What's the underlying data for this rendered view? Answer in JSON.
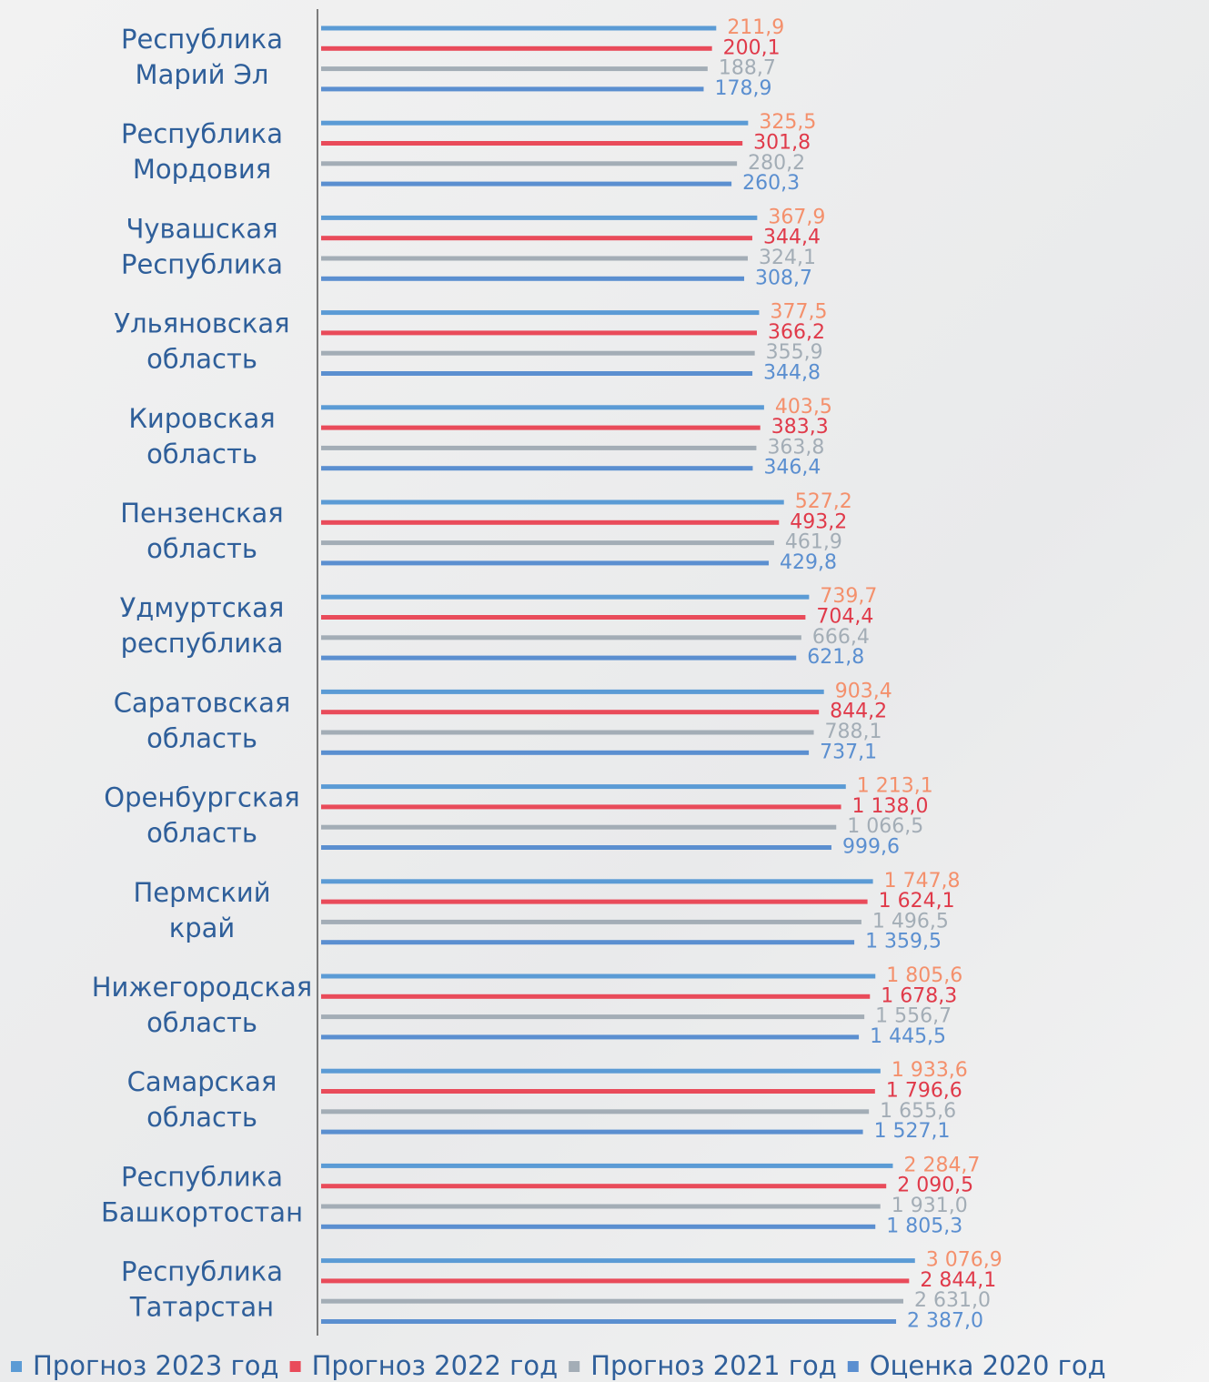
{
  "chart_data": {
    "type": "hbar",
    "log_scale": true,
    "xlim": [
      1,
      100000
    ],
    "categories": [
      "Республика\nМарий Эл",
      "Республика\nМордовия",
      "Чувашская\nРеспублика",
      "Ульяновская\nобласть",
      "Кировская\nобласть",
      "Пензенская\nобласть",
      "Удмуртская\nреспублика",
      "Саратовская\nобласть",
      "Оренбургская\nобласть",
      "Пермский\nкрай",
      "Нижегородская\nобласть",
      "Самарская\nобласть",
      "Республика\nБашкортостан",
      "Республика\nТатарстан"
    ],
    "series": [
      {
        "name": "Прогноз 2023 год",
        "color": "#5b9bd5",
        "label_color": "#f4906c",
        "values": [
          211.9,
          325.5,
          367.9,
          377.5,
          403.5,
          527.2,
          739.7,
          903.4,
          1213.1,
          1747.8,
          1805.6,
          1933.6,
          2284.7,
          3076.9
        ],
        "value_labels": [
          "211,9",
          "325,5",
          "367,9",
          "377,5",
          "403,5",
          "527,2",
          "739,7",
          "903,4",
          "1 213,1",
          "1 747,8",
          "1 805,6",
          "1 933,6",
          "2 284,7",
          "3 076,9"
        ]
      },
      {
        "name": "Прогноз 2022 год",
        "color": "#e94b5a",
        "label_color": "#e03a4a",
        "values": [
          200.1,
          301.8,
          344.4,
          366.2,
          383.3,
          493.2,
          704.4,
          844.2,
          1138.0,
          1624.1,
          1678.3,
          1796.6,
          2090.5,
          2844.1
        ],
        "value_labels": [
          "200,1",
          "301,8",
          "344,4",
          "366,2",
          "383,3",
          "493,2",
          "704,4",
          "844,2",
          "1 138,0",
          "1 624,1",
          "1 678,3",
          "1 796,6",
          "2 090,5",
          "2 844,1"
        ]
      },
      {
        "name": "Прогноз 2021 год",
        "color": "#a3adb6",
        "label_color": "#a3adb6",
        "values": [
          188.7,
          280.2,
          324.1,
          355.9,
          363.8,
          461.9,
          666.4,
          788.1,
          1066.5,
          1496.5,
          1556.7,
          1655.6,
          1931.0,
          2631.0
        ],
        "value_labels": [
          "188,7",
          "280,2",
          "324,1",
          "355,9",
          "363,8",
          "461,9",
          "666,4",
          "788,1",
          "1 066,5",
          "1 496,5",
          "1 556,7",
          "1 655,6",
          "1 931,0",
          "2 631,0"
        ]
      },
      {
        "name": "Оценка 2020 год",
        "color": "#5b8fd0",
        "label_color": "#5b8fd0",
        "values": [
          178.9,
          260.3,
          308.7,
          344.8,
          346.4,
          429.8,
          621.8,
          737.1,
          999.6,
          1359.5,
          1445.5,
          1527.1,
          1805.3,
          2387.0
        ],
        "value_labels": [
          "178,9",
          "260,3",
          "308,7",
          "344,8",
          "346,4",
          "429,8",
          "621,8",
          "737,1",
          "999,6",
          "1 359,5",
          "1 445,5",
          "1 527,1",
          "1 805,3",
          "2 387,0"
        ]
      }
    ]
  }
}
